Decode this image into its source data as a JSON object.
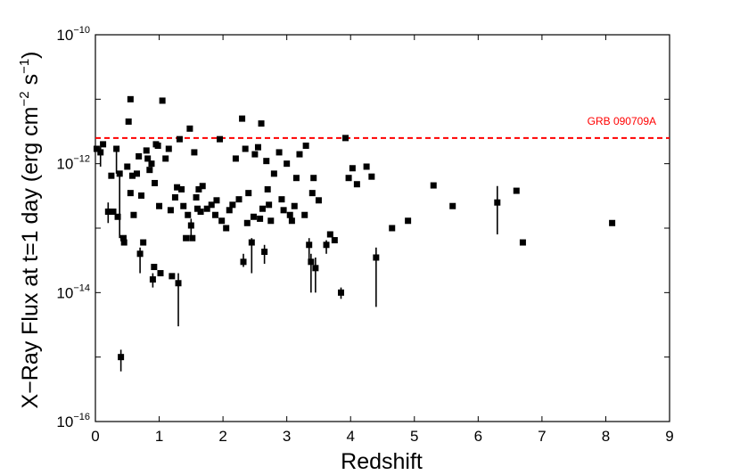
{
  "chart_data": {
    "type": "scatter",
    "title": "",
    "xlabel": "Redshift",
    "ylabel": "X−Ray Flux at t=1 day (erg cm⁻² s⁻¹)",
    "ylabel_parts": {
      "prefix": "X−Ray Flux at t=1 day (erg cm",
      "exp1": "−2",
      "middle": " s",
      "exp2": "−1",
      "suffix": ")"
    },
    "xlim": [
      0,
      9
    ],
    "ylim": [
      1e-16,
      1e-10
    ],
    "yscale": "log",
    "grid": false,
    "x_ticks": [
      "0",
      "1",
      "2",
      "3",
      "4",
      "5",
      "6",
      "7",
      "8",
      "9"
    ],
    "y_ticks": [
      {
        "base": "10",
        "exp": "−16"
      },
      {
        "base": "10",
        "exp": "−14"
      },
      {
        "base": "10",
        "exp": "−12"
      },
      {
        "base": "10",
        "exp": "−10"
      }
    ],
    "reference_line": {
      "label": "GRB 090709A",
      "y": 2.5e-12,
      "color": "#ff0000",
      "style": "dashed"
    },
    "marker_color": "#000000",
    "points": [
      {
        "x": 0.02,
        "y": 1.7e-12
      },
      {
        "x": 0.08,
        "y": 1.5e-12,
        "lo": 9e-13,
        "hi": 1.8e-12
      },
      {
        "x": 0.12,
        "y": 2e-12
      },
      {
        "x": 0.2,
        "y": 1.8e-13,
        "lo": 1.2e-13,
        "hi": 2.5e-13
      },
      {
        "x": 0.25,
        "y": 6.5e-13
      },
      {
        "x": 0.28,
        "y": 1.8e-13
      },
      {
        "x": 0.33,
        "y": 1.7e-12,
        "lo": 7e-13,
        "hi": 1.9e-12
      },
      {
        "x": 0.35,
        "y": 1.5e-13
      },
      {
        "x": 0.38,
        "y": 7e-13,
        "lo": 7e-14,
        "hi": 7.5e-13
      },
      {
        "x": 0.4,
        "y": 1e-15,
        "lo": 6e-16,
        "hi": 1.3e-15
      },
      {
        "x": 0.44,
        "y": 7e-14
      },
      {
        "x": 0.45,
        "y": 6e-14
      },
      {
        "x": 0.5,
        "y": 9e-13
      },
      {
        "x": 0.52,
        "y": 4.5e-12
      },
      {
        "x": 0.55,
        "y": 1e-11
      },
      {
        "x": 0.55,
        "y": 3.5e-13
      },
      {
        "x": 0.58,
        "y": 6.5e-13
      },
      {
        "x": 0.6,
        "y": 1.6e-13
      },
      {
        "x": 0.65,
        "y": 7e-13
      },
      {
        "x": 0.68,
        "y": 1.3e-12
      },
      {
        "x": 0.7,
        "y": 4e-14,
        "lo": 2e-14,
        "hi": 5e-14
      },
      {
        "x": 0.72,
        "y": 3.2e-13
      },
      {
        "x": 0.75,
        "y": 6e-14
      },
      {
        "x": 0.8,
        "y": 1.6e-12
      },
      {
        "x": 0.82,
        "y": 1.2e-12
      },
      {
        "x": 0.85,
        "y": 8e-13
      },
      {
        "x": 0.88,
        "y": 1e-12
      },
      {
        "x": 0.9,
        "y": 1.6e-14,
        "lo": 1.2e-14,
        "hi": 2e-14
      },
      {
        "x": 0.92,
        "y": 2.5e-14
      },
      {
        "x": 0.93,
        "y": 5e-13
      },
      {
        "x": 0.95,
        "y": 2e-12
      },
      {
        "x": 0.98,
        "y": 1.9e-12
      },
      {
        "x": 1.0,
        "y": 2.2e-13
      },
      {
        "x": 1.02,
        "y": 2e-14
      },
      {
        "x": 1.05,
        "y": 9.5e-12
      },
      {
        "x": 1.1,
        "y": 1.2e-12
      },
      {
        "x": 1.15,
        "y": 1.7e-12
      },
      {
        "x": 1.18,
        "y": 1.9e-13
      },
      {
        "x": 1.2,
        "y": 1.8e-14
      },
      {
        "x": 1.25,
        "y": 3e-13
      },
      {
        "x": 1.28,
        "y": 4.3e-13
      },
      {
        "x": 1.3,
        "y": 1.4e-14,
        "lo": 3e-15,
        "hi": 2e-14
      },
      {
        "x": 1.32,
        "y": 2.4e-12
      },
      {
        "x": 1.35,
        "y": 4e-13
      },
      {
        "x": 1.38,
        "y": 2.2e-13
      },
      {
        "x": 1.42,
        "y": 7e-14
      },
      {
        "x": 1.45,
        "y": 1.6e-13
      },
      {
        "x": 1.48,
        "y": 3.5e-12
      },
      {
        "x": 1.5,
        "y": 1.1e-13,
        "lo": 7e-14,
        "hi": 1.4e-13
      },
      {
        "x": 1.52,
        "y": 7e-14
      },
      {
        "x": 1.55,
        "y": 1.5e-12
      },
      {
        "x": 1.58,
        "y": 3e-13
      },
      {
        "x": 1.6,
        "y": 2e-13
      },
      {
        "x": 1.62,
        "y": 4e-13
      },
      {
        "x": 1.65,
        "y": 1.8e-13
      },
      {
        "x": 1.68,
        "y": 4.5e-13
      },
      {
        "x": 1.75,
        "y": 2e-13
      },
      {
        "x": 1.82,
        "y": 2.3e-13
      },
      {
        "x": 1.88,
        "y": 1.6e-13
      },
      {
        "x": 1.9,
        "y": 2.7e-13
      },
      {
        "x": 1.95,
        "y": 2.4e-12
      },
      {
        "x": 1.98,
        "y": 1.3e-13
      },
      {
        "x": 2.05,
        "y": 1e-13
      },
      {
        "x": 2.1,
        "y": 1.9e-13
      },
      {
        "x": 2.15,
        "y": 2.3e-13
      },
      {
        "x": 2.2,
        "y": 1.2e-12
      },
      {
        "x": 2.25,
        "y": 2.8e-13
      },
      {
        "x": 2.3,
        "y": 5e-12
      },
      {
        "x": 2.32,
        "y": 3e-14,
        "lo": 2.5e-14,
        "hi": 4e-14
      },
      {
        "x": 2.35,
        "y": 1.7e-12
      },
      {
        "x": 2.38,
        "y": 1.2e-13
      },
      {
        "x": 2.4,
        "y": 3.5e-13
      },
      {
        "x": 2.45,
        "y": 6e-14,
        "lo": 2e-14,
        "hi": 7e-14
      },
      {
        "x": 2.48,
        "y": 1.5e-13
      },
      {
        "x": 2.5,
        "y": 1.4e-12
      },
      {
        "x": 2.55,
        "y": 1.8e-12
      },
      {
        "x": 2.58,
        "y": 1.4e-13
      },
      {
        "x": 2.6,
        "y": 4.2e-12
      },
      {
        "x": 2.62,
        "y": 2e-13
      },
      {
        "x": 2.65,
        "y": 4.3e-14,
        "lo": 2.8e-14,
        "hi": 5.5e-14
      },
      {
        "x": 2.68,
        "y": 1.1e-12
      },
      {
        "x": 2.7,
        "y": 4e-13
      },
      {
        "x": 2.72,
        "y": 2.3e-13
      },
      {
        "x": 2.75,
        "y": 1.3e-13
      },
      {
        "x": 2.8,
        "y": 7e-13
      },
      {
        "x": 2.88,
        "y": 1.5e-12
      },
      {
        "x": 2.92,
        "y": 2.8e-13
      },
      {
        "x": 2.95,
        "y": 1.9e-13
      },
      {
        "x": 3.0,
        "y": 1e-12
      },
      {
        "x": 3.05,
        "y": 1.6e-13
      },
      {
        "x": 3.08,
        "y": 1.3e-13
      },
      {
        "x": 3.12,
        "y": 2.2e-13
      },
      {
        "x": 3.15,
        "y": 6e-13
      },
      {
        "x": 3.2,
        "y": 1.4e-12
      },
      {
        "x": 3.28,
        "y": 1.6e-13
      },
      {
        "x": 3.3,
        "y": 1.9e-12
      },
      {
        "x": 3.35,
        "y": 5.5e-14,
        "lo": 3e-14,
        "hi": 7e-14
      },
      {
        "x": 3.38,
        "y": 3e-14,
        "lo": 1e-14,
        "hi": 4e-14
      },
      {
        "x": 3.4,
        "y": 3.5e-13
      },
      {
        "x": 3.42,
        "y": 6e-13
      },
      {
        "x": 3.45,
        "y": 2.4e-14,
        "lo": 1e-14,
        "hi": 3.5e-14
      },
      {
        "x": 3.5,
        "y": 2.7e-13
      },
      {
        "x": 3.62,
        "y": 5.5e-14,
        "lo": 4e-14,
        "hi": 6.5e-14
      },
      {
        "x": 3.68,
        "y": 8e-14
      },
      {
        "x": 3.75,
        "y": 6.5e-14
      },
      {
        "x": 3.85,
        "y": 1e-14,
        "lo": 8e-15,
        "hi": 1.2e-14
      },
      {
        "x": 3.92,
        "y": 2.5e-12
      },
      {
        "x": 3.97,
        "y": 6e-13
      },
      {
        "x": 4.03,
        "y": 8.5e-13
      },
      {
        "x": 4.1,
        "y": 4.8e-13
      },
      {
        "x": 4.25,
        "y": 9e-13
      },
      {
        "x": 4.33,
        "y": 6.3e-13
      },
      {
        "x": 4.4,
        "y": 3.5e-14,
        "lo": 6e-15,
        "hi": 5e-14
      },
      {
        "x": 4.65,
        "y": 1e-13
      },
      {
        "x": 4.9,
        "y": 1.3e-13
      },
      {
        "x": 5.3,
        "y": 4.6e-13
      },
      {
        "x": 5.6,
        "y": 2.2e-13
      },
      {
        "x": 6.3,
        "y": 2.5e-13,
        "lo": 8e-14,
        "hi": 4.5e-13
      },
      {
        "x": 6.6,
        "y": 3.8e-13
      },
      {
        "x": 6.7,
        "y": 6e-14
      },
      {
        "x": 8.1,
        "y": 1.2e-13
      }
    ]
  }
}
